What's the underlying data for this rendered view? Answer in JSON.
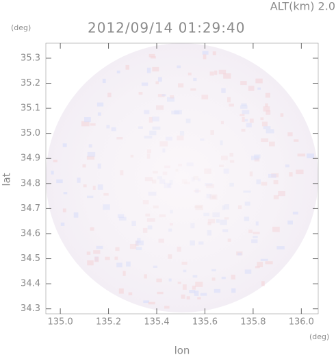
{
  "chart_data": {
    "type": "heatmap",
    "title": "2012/09/14 01:29:40",
    "subtitle": "ALT(km) 2.0",
    "x_label": "lon",
    "y_label": "lat",
    "x_unit": "(deg)",
    "y_unit": "(deg)",
    "xlim": [
      134.94,
      136.07
    ],
    "ylim": [
      34.28,
      35.36
    ],
    "xticks": [
      {
        "value": 135,
        "label": "135.0"
      },
      135.2,
      135.4,
      135.6,
      135.8,
      {
        "value": 136,
        "label": "136.0"
      }
    ],
    "yticks": [
      34.3,
      34.4,
      34.5,
      34.6,
      34.7,
      34.8,
      34.9,
      {
        "value": 35,
        "label": "35.0"
      },
      35.1,
      35.2,
      35.3
    ]
  }
}
